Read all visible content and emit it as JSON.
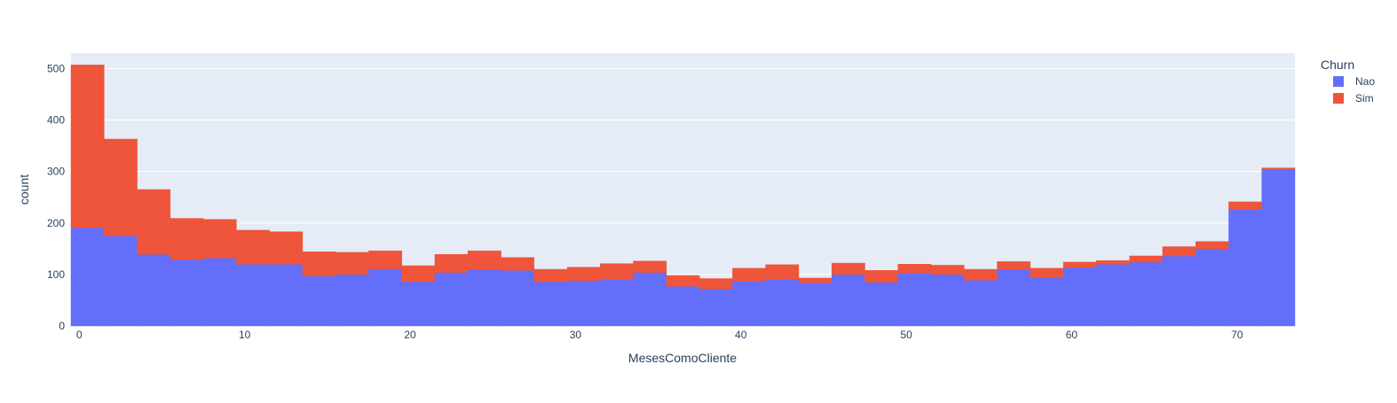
{
  "chart_data": {
    "type": "bar",
    "barmode": "stack",
    "xlabel": "MesesComoCliente",
    "ylabel": "count",
    "xlim": [
      -0.5,
      73.5
    ],
    "ylim": [
      0,
      530
    ],
    "x_ticks": [
      0,
      10,
      20,
      30,
      40,
      50,
      60,
      70
    ],
    "y_ticks": [
      0,
      100,
      200,
      300,
      400,
      500
    ],
    "grid": true,
    "plot_background": "#e5ecf6",
    "legend": {
      "title": "Churn",
      "position": "top-right"
    },
    "bins": [
      [
        -0.5,
        1.5
      ],
      [
        1.5,
        3.5
      ],
      [
        3.5,
        5.5
      ],
      [
        5.5,
        7.5
      ],
      [
        7.5,
        9.5
      ],
      [
        9.5,
        11.5
      ],
      [
        11.5,
        13.5
      ],
      [
        13.5,
        15.5
      ],
      [
        15.5,
        17.5
      ],
      [
        17.5,
        19.5
      ],
      [
        19.5,
        21.5
      ],
      [
        21.5,
        23.5
      ],
      [
        23.5,
        25.5
      ],
      [
        25.5,
        27.5
      ],
      [
        27.5,
        29.5
      ],
      [
        29.5,
        31.5
      ],
      [
        31.5,
        33.5
      ],
      [
        33.5,
        35.5
      ],
      [
        35.5,
        37.5
      ],
      [
        37.5,
        39.5
      ],
      [
        39.5,
        41.5
      ],
      [
        41.5,
        43.5
      ],
      [
        43.5,
        45.5
      ],
      [
        45.5,
        47.5
      ],
      [
        47.5,
        49.5
      ],
      [
        49.5,
        51.5
      ],
      [
        51.5,
        53.5
      ],
      [
        53.5,
        55.5
      ],
      [
        55.5,
        57.5
      ],
      [
        57.5,
        59.5
      ],
      [
        59.5,
        61.5
      ],
      [
        61.5,
        63.5
      ],
      [
        63.5,
        65.5
      ],
      [
        65.5,
        67.5
      ],
      [
        67.5,
        69.5
      ],
      [
        69.5,
        71.5
      ],
      [
        71.5,
        73.5
      ]
    ],
    "series": [
      {
        "name": "Nao",
        "color": "#636efa",
        "values": [
          191,
          175,
          139,
          129,
          132,
          120,
          120,
          97,
          100,
          111,
          86,
          104,
          110,
          108,
          86,
          88,
          91,
          104,
          77,
          72,
          87,
          91,
          84,
          100,
          85,
          103,
          100,
          89,
          110,
          94,
          114,
          120,
          124,
          136,
          150,
          226,
          304
        ]
      },
      {
        "name": "Sim",
        "color": "#ef553b",
        "values": [
          316,
          188,
          126,
          80,
          75,
          66,
          63,
          47,
          43,
          35,
          31,
          35,
          36,
          25,
          24,
          26,
          30,
          22,
          21,
          20,
          25,
          28,
          9,
          22,
          23,
          17,
          18,
          21,
          15,
          18,
          10,
          7,
          12,
          18,
          14,
          15,
          3
        ]
      }
    ]
  }
}
